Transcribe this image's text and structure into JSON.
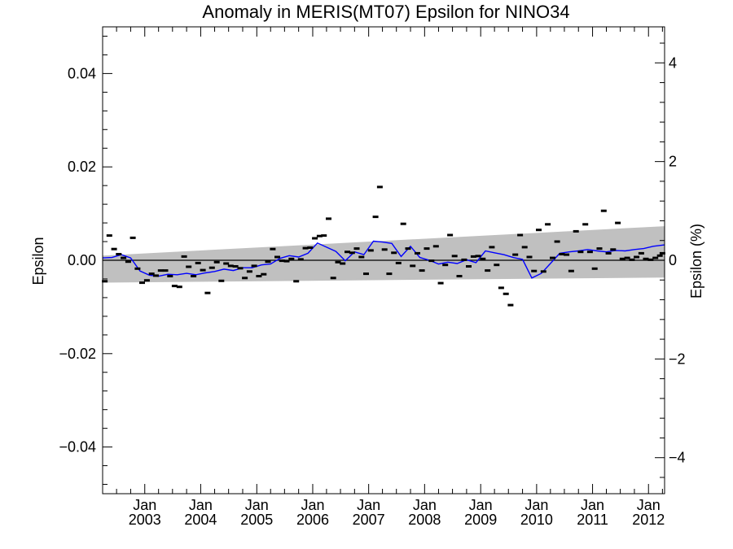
{
  "chart_data": {
    "type": "line",
    "title": "Anomaly in MERIS(MT07) Epsilon for NINO34",
    "ylabel": "Epsilon",
    "ylabel_right": "Epsilon (%)",
    "xlabel": "",
    "xlim": [
      "2002-04-01",
      "2012-04-15"
    ],
    "ylim": [
      -0.05,
      0.05
    ],
    "ylim_right": [
      -4.73,
      4.73
    ],
    "x_ticks": [
      {
        "date": "2003-01-01",
        "line1": "Jan",
        "line2": "2003"
      },
      {
        "date": "2004-01-01",
        "line1": "Jan",
        "line2": "2004"
      },
      {
        "date": "2005-01-01",
        "line1": "Jan",
        "line2": "2005"
      },
      {
        "date": "2006-01-01",
        "line1": "Jan",
        "line2": "2006"
      },
      {
        "date": "2007-01-01",
        "line1": "Jan",
        "line2": "2007"
      },
      {
        "date": "2008-01-01",
        "line1": "Jan",
        "line2": "2008"
      },
      {
        "date": "2009-01-01",
        "line1": "Jan",
        "line2": "2009"
      },
      {
        "date": "2010-01-01",
        "line1": "Jan",
        "line2": "2010"
      },
      {
        "date": "2011-01-01",
        "line1": "Jan",
        "line2": "2011"
      },
      {
        "date": "2012-01-01",
        "line1": "Jan",
        "line2": "2012"
      }
    ],
    "y_ticks": [
      {
        "value": 0.04,
        "label": "0.04"
      },
      {
        "value": 0.02,
        "label": "0.02"
      },
      {
        "value": 0.0,
        "label": "0.00"
      },
      {
        "value": -0.02,
        "label": "−0.02"
      },
      {
        "value": -0.04,
        "label": "−0.04"
      }
    ],
    "y_ticks_right": [
      {
        "value": 4,
        "label": "4"
      },
      {
        "value": 2,
        "label": "2"
      },
      {
        "value": 0,
        "label": "0"
      },
      {
        "value": -2,
        "label": "−2"
      },
      {
        "value": -4,
        "label": "−4"
      }
    ],
    "zero_line": 0.0,
    "band": {
      "x": [
        "2002-04-01",
        "2012-04-15"
      ],
      "upper": [
        0.001,
        0.0073
      ],
      "lower": [
        -0.0048,
        -0.0037
      ],
      "color": "#c0c0c0"
    },
    "series": [
      {
        "kind": "markers",
        "color": "#000000",
        "x": [
          "2002-04-15",
          "2002-05-15",
          "2002-06-15",
          "2002-07-15",
          "2002-08-15",
          "2002-09-15",
          "2002-10-15",
          "2002-11-15",
          "2002-12-15",
          "2003-01-15",
          "2003-02-15",
          "2003-03-15",
          "2003-04-15",
          "2003-05-15",
          "2003-06-15",
          "2003-07-15",
          "2003-08-15",
          "2003-09-15",
          "2003-10-15",
          "2003-11-15",
          "2003-12-15",
          "2004-01-15",
          "2004-02-15",
          "2004-03-15",
          "2004-04-15",
          "2004-05-15",
          "2004-06-15",
          "2004-07-15",
          "2004-08-15",
          "2004-09-15",
          "2004-10-15",
          "2004-11-15",
          "2004-12-15",
          "2005-01-15",
          "2005-02-15",
          "2005-03-15",
          "2005-04-15",
          "2005-05-15",
          "2005-06-15",
          "2005-07-15",
          "2005-08-15",
          "2005-09-15",
          "2005-10-15",
          "2005-11-15",
          "2005-12-15",
          "2006-01-15",
          "2006-02-15",
          "2006-03-15",
          "2006-04-15",
          "2006-05-15",
          "2006-06-15",
          "2006-07-15",
          "2006-08-15",
          "2006-09-15",
          "2006-10-15",
          "2006-11-15",
          "2006-12-15",
          "2007-01-15",
          "2007-02-15",
          "2007-03-15",
          "2007-04-15",
          "2007-05-15",
          "2007-06-15",
          "2007-07-15",
          "2007-08-15",
          "2007-09-15",
          "2007-10-15",
          "2007-11-15",
          "2007-12-15",
          "2008-01-15",
          "2008-02-15",
          "2008-03-15",
          "2008-04-15",
          "2008-05-15",
          "2008-06-15",
          "2008-07-15",
          "2008-08-15",
          "2008-09-15",
          "2008-10-15",
          "2008-11-15",
          "2008-12-15",
          "2009-01-15",
          "2009-02-15",
          "2009-03-15",
          "2009-04-15",
          "2009-05-15",
          "2009-06-15",
          "2009-07-15",
          "2009-08-15",
          "2009-09-15",
          "2009-10-15",
          "2009-11-15",
          "2009-12-15",
          "2010-01-15",
          "2010-02-15",
          "2010-03-15",
          "2010-04-15",
          "2010-05-15",
          "2010-06-15",
          "2010-07-15",
          "2010-08-15",
          "2010-09-15",
          "2010-10-15",
          "2010-11-15",
          "2010-12-15",
          "2011-01-15",
          "2011-02-15",
          "2011-03-15",
          "2011-04-15",
          "2011-05-15",
          "2011-06-15",
          "2011-07-15",
          "2011-08-15",
          "2011-09-15",
          "2011-10-15",
          "2011-11-15",
          "2011-12-15",
          "2012-01-15",
          "2012-02-15",
          "2012-03-15",
          "2012-04-01"
        ],
        "values": [
          -0.0045,
          0.0053,
          0.0024,
          0.0013,
          0.0005,
          -0.0003,
          0.0048,
          -0.0018,
          -0.0048,
          -0.0043,
          -0.0029,
          -0.0033,
          -0.0022,
          -0.0022,
          -0.0034,
          -0.0055,
          -0.0057,
          0.0008,
          -0.0014,
          -0.0034,
          -0.0006,
          -0.0021,
          -0.007,
          -0.0016,
          -0.0004,
          -0.0044,
          -0.0007,
          -0.0012,
          -0.0013,
          -0.0017,
          -0.0038,
          -0.0024,
          -0.0012,
          -0.0034,
          -0.003,
          -0.0003,
          0.0024,
          0.0007,
          -0.0001,
          -0.0002,
          0.0003,
          -0.0045,
          0.0002,
          0.0026,
          0.0027,
          0.0047,
          0.0052,
          0.0053,
          0.0089,
          -0.0038,
          -0.0004,
          -0.0007,
          0.0018,
          0.0016,
          0.0025,
          0.0007,
          -0.0029,
          0.0021,
          0.0093,
          0.0157,
          0.0023,
          -0.0029,
          0.0016,
          -0.0006,
          0.0078,
          0.0025,
          -0.0012,
          0.0015,
          -0.0022,
          0.0025,
          -0.0001,
          0.003,
          -0.0049,
          -0.001,
          0.0054,
          0.0009,
          -0.0034,
          0.0001,
          -0.0013,
          0.0008,
          0.0009,
          0.0003,
          -0.0022,
          0.0028,
          -0.001,
          -0.0059,
          -0.0072,
          -0.0096,
          0.0012,
          0.0054,
          0.0028,
          0.0007,
          -0.0023,
          0.0065,
          -0.0024,
          0.0077,
          0.0005,
          0.004,
          0.0013,
          0.0012,
          -0.0023,
          0.0062,
          0.0018,
          0.0077,
          0.0018,
          -0.0018,
          0.0025,
          0.0106,
          0.0015,
          0.0023,
          0.008,
          0.0003,
          0.0005,
          0.0001,
          0.0007,
          0.0015,
          0.0003,
          0.0001,
          0.0005,
          0.001,
          0.0015
        ]
      },
      {
        "kind": "line",
        "color": "#0000ff",
        "x": [
          "2002-04-01",
          "2002-06-01",
          "2002-08-01",
          "2002-10-01",
          "2002-12-01",
          "2003-02-01",
          "2003-04-01",
          "2003-06-01",
          "2003-08-01",
          "2003-10-01",
          "2003-12-01",
          "2004-02-01",
          "2004-04-01",
          "2004-06-01",
          "2004-08-01",
          "2004-10-01",
          "2004-12-01",
          "2005-02-01",
          "2005-04-01",
          "2005-06-01",
          "2005-08-01",
          "2005-10-01",
          "2005-12-01",
          "2006-02-01",
          "2006-04-01",
          "2006-06-01",
          "2006-08-01",
          "2006-10-01",
          "2006-12-01",
          "2007-02-01",
          "2007-04-01",
          "2007-06-01",
          "2007-08-01",
          "2007-10-01",
          "2007-12-01",
          "2008-02-01",
          "2008-04-01",
          "2008-06-01",
          "2008-08-01",
          "2008-10-01",
          "2008-12-01",
          "2009-02-01",
          "2009-04-01",
          "2009-06-01",
          "2009-08-01",
          "2009-10-01",
          "2009-12-01",
          "2010-02-01",
          "2010-04-01",
          "2010-06-01",
          "2010-08-01",
          "2010-10-01",
          "2010-12-01",
          "2011-02-01",
          "2011-04-01",
          "2011-06-01",
          "2011-08-01",
          "2011-10-01",
          "2011-12-01",
          "2012-02-01",
          "2012-04-15"
        ],
        "values": [
          0.0005,
          0.0006,
          0.0012,
          0.0005,
          -0.0023,
          -0.0032,
          -0.0034,
          -0.003,
          -0.0031,
          -0.0028,
          -0.0031,
          -0.0027,
          -0.0024,
          -0.0019,
          -0.0022,
          -0.0016,
          -0.0016,
          -0.001,
          -0.0008,
          0.0004,
          0.001,
          0.0007,
          0.0015,
          0.0037,
          0.0028,
          0.0019,
          -0.0001,
          0.0018,
          0.0012,
          0.0041,
          0.0039,
          0.0036,
          0.0008,
          0.003,
          0.0006,
          0.0,
          -0.0008,
          -0.0004,
          -0.0007,
          0.0001,
          -0.0005,
          0.002,
          0.0016,
          0.0012,
          0.0006,
          0.0002,
          -0.0038,
          -0.0028,
          -0.0007,
          0.0015,
          0.0018,
          0.002,
          0.0023,
          0.002,
          0.0018,
          0.0021,
          0.002,
          0.0023,
          0.0025,
          0.003,
          0.0033
        ]
      }
    ],
    "grid": false,
    "legend": "none"
  }
}
